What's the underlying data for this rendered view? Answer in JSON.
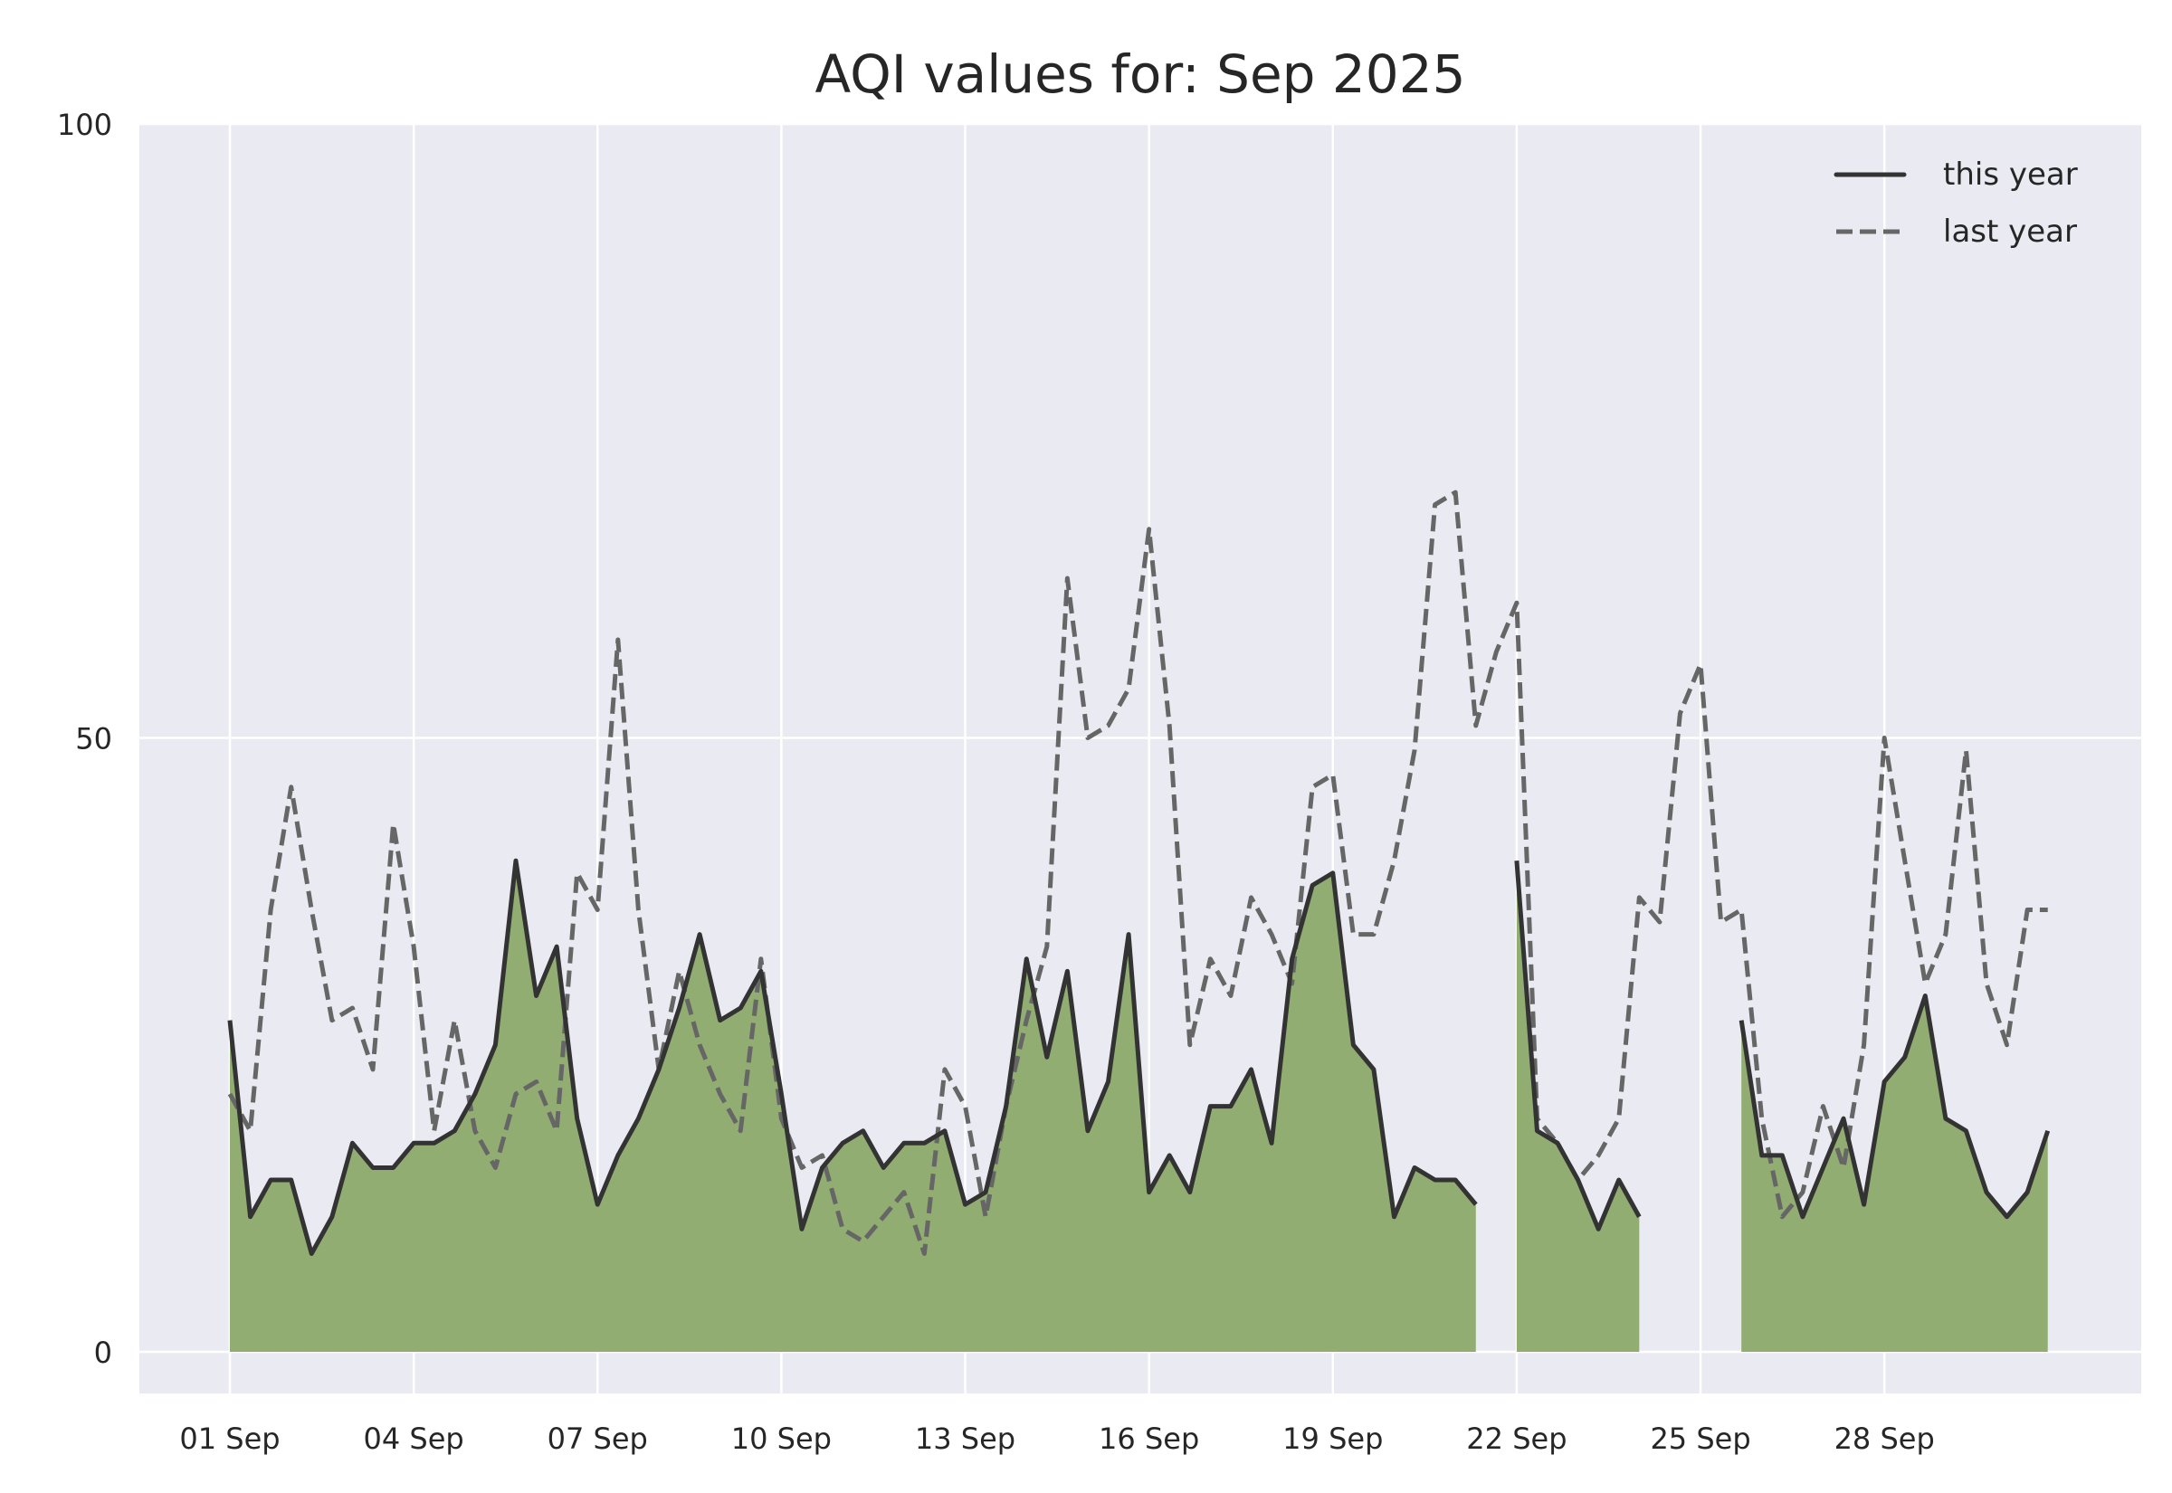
{
  "chart_data": {
    "type": "line",
    "title": "AQI values for: Sep 2025",
    "xlabel": "",
    "ylabel": "",
    "ylim": [
      0,
      100
    ],
    "yticks": [
      0,
      50,
      100
    ],
    "ytick_labels": [
      "0",
      "50",
      "100"
    ],
    "samples_per_day": 3,
    "xtick_labels": [
      "01 Sep",
      "04 Sep",
      "07 Sep",
      "10 Sep",
      "13 Sep",
      "16 Sep",
      "19 Sep",
      "22 Sep",
      "25 Sep",
      "28 Sep"
    ],
    "grid": true,
    "legend_position": "top-right",
    "colors": {
      "background": "#eaeaf2",
      "grid": "#ffffff",
      "fill": "#91ad72",
      "this_year": "#333333",
      "last_year": "#666666",
      "text": "#262626"
    },
    "series": [
      {
        "name": "this year",
        "style": "solid",
        "filled": true,
        "values": [
          27,
          11,
          14,
          14,
          8,
          11,
          17,
          15,
          15,
          17,
          17,
          18,
          21,
          25,
          40,
          29,
          33,
          19,
          12,
          16,
          19,
          23,
          28,
          34,
          27,
          28,
          31,
          21,
          10,
          15,
          17,
          18,
          15,
          17,
          17,
          18,
          12,
          13,
          20,
          32,
          24,
          31,
          18,
          22,
          34,
          13,
          16,
          13,
          20,
          20,
          23,
          17,
          32,
          38,
          39,
          25,
          23,
          11,
          15,
          14,
          14,
          12,
          null,
          40,
          18,
          17,
          14,
          10,
          14,
          11,
          null,
          null,
          null,
          null,
          27,
          16,
          16,
          11,
          15,
          19,
          12,
          22,
          24,
          29,
          19,
          18,
          13,
          11,
          13,
          18
        ]
      },
      {
        "name": "last year",
        "style": "dashed",
        "filled": false,
        "values": [
          21,
          18,
          36,
          46,
          36,
          27,
          28,
          23,
          43,
          33,
          18,
          27,
          18,
          15,
          21,
          22,
          18,
          39,
          36,
          58,
          36,
          23,
          31,
          25,
          21,
          18,
          32,
          19,
          15,
          16,
          10,
          9,
          11,
          13,
          8,
          23,
          20,
          11,
          20,
          27,
          33,
          63,
          50,
          51,
          54,
          67,
          51,
          25,
          32,
          29,
          37,
          34,
          30,
          46,
          47,
          34,
          34,
          40,
          49,
          69,
          70,
          51,
          57,
          61,
          19,
          17,
          14,
          16,
          19,
          37,
          35,
          52,
          56,
          35,
          36,
          19,
          11,
          13,
          20,
          15,
          25,
          50,
          40,
          30,
          34,
          49,
          30,
          25,
          36,
          36
        ]
      }
    ]
  }
}
